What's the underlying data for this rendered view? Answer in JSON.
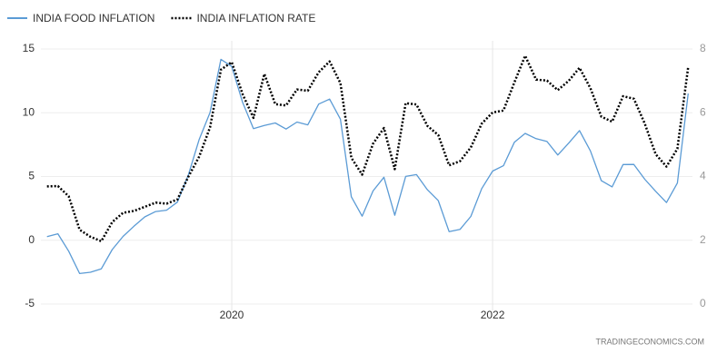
{
  "chart_data": {
    "type": "line",
    "categories": [
      null,
      null,
      null,
      null,
      null,
      null,
      null,
      null,
      null,
      null,
      null,
      null,
      null,
      null,
      null,
      null,
      null,
      "2020",
      null,
      null,
      null,
      null,
      null,
      null,
      null,
      null,
      null,
      null,
      null,
      null,
      null,
      null,
      null,
      null,
      null,
      null,
      null,
      null,
      null,
      null,
      null,
      "2022",
      null,
      null,
      null,
      null,
      null,
      null,
      null,
      null,
      null,
      null,
      null,
      null,
      null,
      null,
      null,
      null,
      null,
      null
    ],
    "series": [
      {
        "name": "INDIA FOOD INFLATION",
        "color": "#5b9bd5",
        "line_style": "solid",
        "values": [
          0.29,
          0.51,
          -0.86,
          -2.61,
          -2.51,
          -2.24,
          -0.73,
          0.3,
          1.1,
          1.83,
          2.25,
          2.36,
          2.99,
          5.11,
          7.89,
          10.01,
          14.19,
          13.63,
          10.81,
          8.76,
          9.0,
          9.2,
          8.72,
          9.27,
          9.05,
          10.68,
          11.07,
          9.5,
          3.41,
          1.89,
          3.87,
          4.94,
          1.96,
          5.01,
          5.15,
          3.96,
          3.11,
          0.68,
          0.85,
          1.87,
          4.05,
          5.43,
          5.85,
          7.68,
          8.38,
          7.97,
          7.75,
          6.69,
          7.62,
          8.6,
          7.01,
          4.67,
          4.19,
          5.94,
          5.95,
          4.79,
          3.84,
          2.96,
          4.49,
          11.51
        ]
      },
      {
        "name": "INDIA INFLATION RATE",
        "color": "#000000",
        "line_style": "dotted",
        "axis": "y2",
        "values": [
          3.69,
          3.7,
          3.38,
          2.33,
          2.11,
          1.97,
          2.57,
          2.86,
          2.92,
          3.05,
          3.18,
          3.15,
          3.28,
          3.99,
          4.62,
          5.54,
          7.35,
          7.59,
          6.58,
          5.84,
          7.22,
          6.27,
          6.23,
          6.73,
          6.69,
          7.27,
          7.61,
          6.93,
          4.59,
          4.06,
          5.03,
          5.52,
          4.23,
          6.3,
          6.26,
          5.59,
          5.3,
          4.35,
          4.48,
          4.91,
          5.66,
          6.01,
          6.07,
          6.95,
          7.79,
          7.04,
          7.01,
          6.71,
          7.0,
          7.41,
          6.77,
          5.88,
          5.72,
          6.52,
          6.44,
          5.66,
          4.7,
          4.31,
          4.87,
          7.44
        ]
      }
    ],
    "ylim": [
      -5,
      15
    ],
    "yticks": [
      -5,
      0,
      5,
      10,
      15
    ],
    "y2lim": [
      0,
      8
    ],
    "y2ticks": [
      0,
      2,
      4,
      6,
      8
    ],
    "grid": true,
    "legend": "top-left",
    "source": "TRADINGECONOMICS.COM"
  }
}
